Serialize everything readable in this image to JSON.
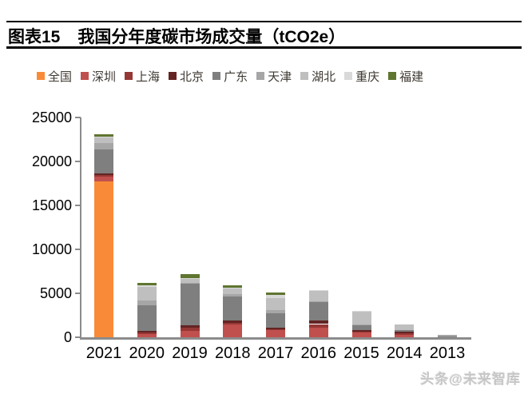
{
  "header": {
    "title_prefix": "图表15",
    "title_main": "我国分年度碳市场成交量（tCO2e）"
  },
  "chart_data": {
    "type": "bar",
    "stacked": true,
    "title": "图表15 我国分年度碳市场成交量（tCO2e）",
    "categories": [
      "2021",
      "2020",
      "2019",
      "2018",
      "2017",
      "2016",
      "2015",
      "2014",
      "2013"
    ],
    "series": [
      {
        "name": "全国",
        "color": "#F98B38",
        "values": [
          17700,
          0,
          0,
          0,
          0,
          0,
          0,
          0,
          0
        ]
      },
      {
        "name": "深圳",
        "color": "#C0504D",
        "values": [
          600,
          390,
          770,
          1480,
          800,
          1100,
          570,
          300,
          0
        ]
      },
      {
        "name": "上海",
        "color": "#953735",
        "values": [
          180,
          180,
          300,
          200,
          150,
          400,
          100,
          150,
          0
        ]
      },
      {
        "name": "北京",
        "color": "#632423",
        "values": [
          180,
          180,
          300,
          200,
          180,
          400,
          110,
          150,
          0
        ]
      },
      {
        "name": "广东",
        "color": "#7F7F7F",
        "values": [
          2700,
          2870,
          4700,
          2720,
          1600,
          2100,
          600,
          250,
          100
        ]
      },
      {
        "name": "天津",
        "color": "#A6A6A6",
        "values": [
          700,
          600,
          100,
          300,
          400,
          100,
          100,
          0,
          200
        ]
      },
      {
        "name": "湖北",
        "color": "#BFBFBF",
        "values": [
          700,
          1500,
          500,
          650,
          1350,
          1200,
          1400,
          600,
          0
        ]
      },
      {
        "name": "重庆",
        "color": "#D9D9D9",
        "values": [
          90,
          170,
          70,
          100,
          350,
          100,
          120,
          0,
          0
        ]
      },
      {
        "name": "福建",
        "color": "#5F7530",
        "values": [
          250,
          270,
          450,
          250,
          250,
          0,
          0,
          0,
          0
        ]
      }
    ],
    "ylim": [
      0,
      25000
    ],
    "yticks": [
      0,
      5000,
      10000,
      15000,
      20000,
      25000
    ],
    "grid": false,
    "legend_position": "top",
    "axis_color": "#8C8C8C"
  },
  "watermark": {
    "text": "头条@未来智库"
  }
}
